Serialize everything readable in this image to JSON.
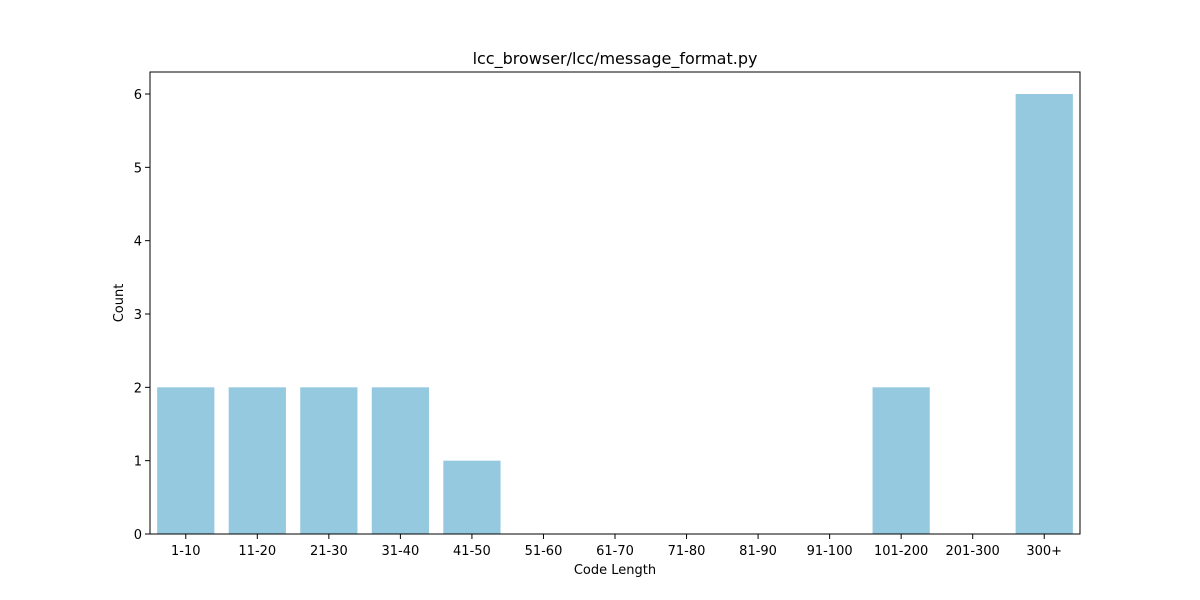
{
  "chart_data": {
    "type": "bar",
    "title": "lcc_browser/lcc/message_format.py",
    "xlabel": "Code Length",
    "ylabel": "Count",
    "categories": [
      "1-10",
      "11-20",
      "21-30",
      "31-40",
      "41-50",
      "51-60",
      "61-70",
      "71-80",
      "81-90",
      "91-100",
      "101-200",
      "201-300",
      "300+"
    ],
    "values": [
      2,
      2,
      2,
      2,
      1,
      0,
      0,
      0,
      0,
      0,
      2,
      0,
      6
    ],
    "ylim": [
      0,
      6.3
    ],
    "yticks": [
      0,
      1,
      2,
      3,
      4,
      5,
      6
    ],
    "bar_color": "#95c9df",
    "grid": false,
    "legend": "none"
  }
}
